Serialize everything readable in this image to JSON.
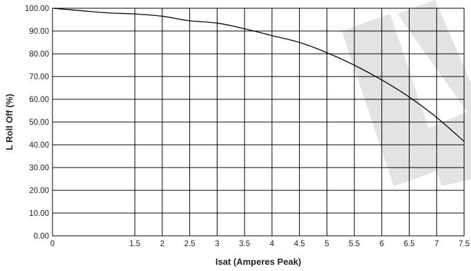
{
  "chart_data": {
    "type": "line",
    "title": "",
    "xlabel": "Isat (Amperes Peak)",
    "ylabel": "L Roll Off (%)",
    "xlim": [
      0,
      7.5
    ],
    "ylim": [
      0,
      100
    ],
    "x_ticks": [
      0,
      1.5,
      2,
      2.5,
      3,
      3.5,
      4,
      4.5,
      5,
      5.5,
      6,
      6.5,
      7,
      7.5
    ],
    "x_tick_labels": [
      "0",
      "1.5",
      "2",
      "2.5",
      "3",
      "3.5",
      "4",
      "4.5",
      "5",
      "5.5",
      "6",
      "6.5",
      "7",
      "7.5"
    ],
    "y_ticks": [
      0,
      10,
      20,
      30,
      40,
      50,
      60,
      70,
      80,
      90,
      100
    ],
    "y_tick_labels": [
      "0.00",
      "10.00",
      "20.00",
      "30.00",
      "40.00",
      "50.00",
      "60.00",
      "70.00",
      "80.00",
      "90.00",
      "100.00"
    ],
    "grid": true,
    "series": [
      {
        "x": [
          0,
          0.5,
          1,
          1.5,
          2,
          2.5,
          3,
          3.5,
          4,
          4.5,
          5,
          5.5,
          6,
          6.5,
          7,
          7.5
        ],
        "values": [
          100,
          99,
          98,
          97.5,
          96.5,
          94.5,
          93.5,
          91,
          88,
          85,
          80.5,
          75,
          68.5,
          61,
          52,
          41.5
        ],
        "color": "#000000"
      }
    ],
    "colors": {
      "line": "#000000",
      "grid": "#000000",
      "watermark": "#e3e3e3"
    }
  }
}
